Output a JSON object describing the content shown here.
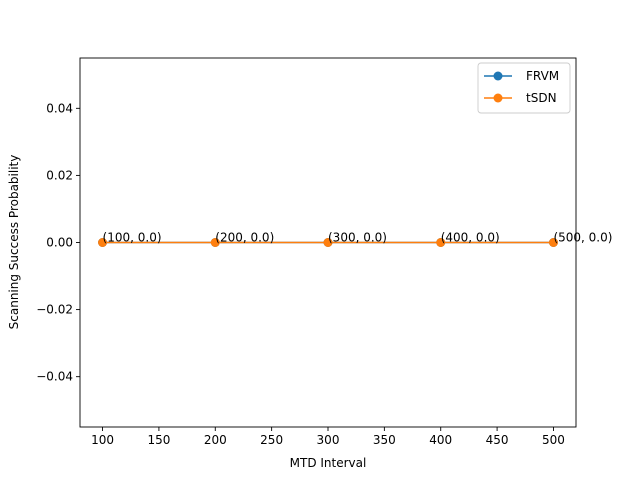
{
  "chart_data": {
    "type": "line",
    "title": "",
    "xlabel": "MTD Interval",
    "ylabel": "Scanning Success Probability",
    "x": [
      100,
      200,
      300,
      400,
      500
    ],
    "xlim": [
      80,
      520
    ],
    "ylim": [
      -0.055,
      0.055
    ],
    "xticks": [
      100,
      150,
      200,
      250,
      300,
      350,
      400,
      450,
      500
    ],
    "yticks": [
      -0.04,
      -0.02,
      0.0,
      0.02,
      0.04
    ],
    "xtick_labels": [
      "100",
      "150",
      "200",
      "250",
      "300",
      "350",
      "400",
      "450",
      "500"
    ],
    "ytick_labels": [
      "−0.04",
      "−0.02",
      "0.00",
      "0.02",
      "0.04"
    ],
    "grid": false,
    "legend_position": "top-right",
    "series": [
      {
        "name": "FRVM",
        "color": "#1f77b4",
        "marker": "circle",
        "values": [
          0.0,
          0.0,
          0.0,
          0.0,
          0.0
        ]
      },
      {
        "name": "tSDN",
        "color": "#ff7f0e",
        "marker": "circle",
        "values": [
          0.0,
          0.0,
          0.0,
          0.0,
          0.0
        ]
      }
    ],
    "annotations": [
      "(100, 0.0)",
      "(200, 0.0)",
      "(300, 0.0)",
      "(400, 0.0)",
      "(500, 0.0)"
    ]
  }
}
